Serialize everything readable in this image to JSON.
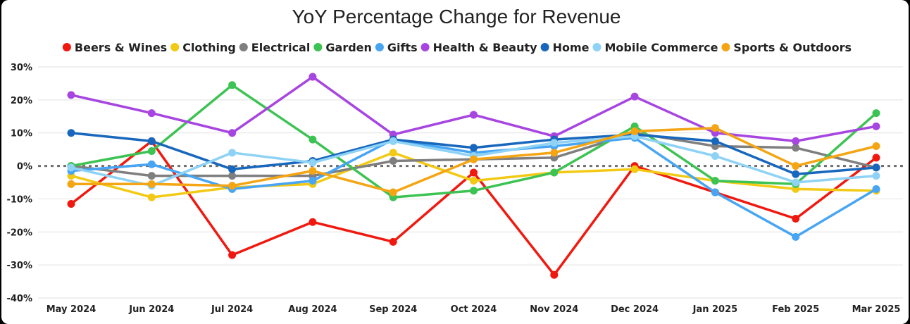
{
  "chart_data": {
    "type": "line",
    "title": "YoY Percentage Change for Revenue",
    "xlabel": "",
    "ylabel": "",
    "categories": [
      "May 2024",
      "Jun 2024",
      "Jul 2024",
      "Aug 2024",
      "Sep 2024",
      "Oct 2024",
      "Nov 2024",
      "Dec 2024",
      "Jan 2025",
      "Feb 2025",
      "Mar 2025"
    ],
    "ylim": [
      -40,
      30
    ],
    "yticks": [
      30,
      20,
      10,
      0,
      -10,
      -20,
      -30,
      -40
    ],
    "ytick_labels": [
      "30%",
      "20%",
      "10%",
      "0%",
      "-10%",
      "-20%",
      "-30%",
      "-40%"
    ],
    "grid": true,
    "zero_line": "dotted",
    "legend_position": "top",
    "series": [
      {
        "name": "Beers & Wines",
        "color": "#f0190f",
        "values": [
          -11.5,
          7.5,
          -27,
          -17,
          -23,
          -2,
          -33,
          0,
          -8,
          -16,
          2.5
        ]
      },
      {
        "name": "Clothing",
        "color": "#f2ca15",
        "values": [
          -3,
          -9.5,
          -6.5,
          -5.5,
          4,
          -4.5,
          -2,
          -1,
          -4.5,
          -7,
          -7.5
        ]
      },
      {
        "name": "Electrical",
        "color": "#7f7f7f",
        "values": [
          0,
          -3,
          -3,
          -3,
          1.5,
          2,
          2.5,
          10,
          6,
          5.5,
          -0.5
        ]
      },
      {
        "name": "Garden",
        "color": "#3dc353",
        "values": [
          0,
          4.5,
          24.5,
          8,
          -9.5,
          -7.5,
          -2,
          12,
          -4.5,
          -5.5,
          16
        ]
      },
      {
        "name": "Gifts",
        "color": "#47a5f3",
        "values": [
          -1.5,
          0.5,
          -7,
          -4.5,
          8,
          4,
          6,
          8.5,
          -8,
          -21.5,
          -7
        ]
      },
      {
        "name": "Health & Beauty",
        "color": "#a745e0",
        "values": [
          21.5,
          16,
          10,
          27,
          9.5,
          15.5,
          9,
          21,
          10,
          7.5,
          12
        ]
      },
      {
        "name": "Home",
        "color": "#1967bc",
        "values": [
          10,
          7.5,
          -1,
          1.5,
          8,
          5.5,
          8,
          9.5,
          7.5,
          -2.5,
          -0.5
        ]
      },
      {
        "name": "Mobile Commerce",
        "color": "#8ed2f5",
        "values": [
          -0.5,
          -6,
          4,
          1,
          7.5,
          3,
          7,
          9,
          3,
          -5,
          -3
        ]
      },
      {
        "name": "Sports & Outdoors",
        "color": "#f4a514",
        "values": [
          -5.5,
          -5.5,
          -6,
          -1.5,
          -8,
          2,
          4,
          10.5,
          11.5,
          0,
          6
        ]
      }
    ]
  }
}
